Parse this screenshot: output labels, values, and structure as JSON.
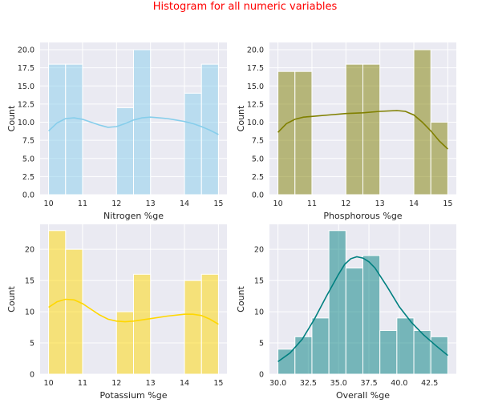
{
  "suptitle": "Histogram for all numeric variables",
  "colors": {
    "background": "#eaeaf2",
    "grid": "#ffffff",
    "suptitle": "#ff0000",
    "text": "#262626"
  },
  "chart_data": [
    {
      "type": "histogram",
      "xlabel": "Nitrogen %ge",
      "ylabel": "Count",
      "bar_color": "#87ceeb",
      "kde_color": "#87ceeb",
      "xlim": [
        9.75,
        15.25
      ],
      "ylim": [
        0,
        21
      ],
      "xticks": [
        10,
        11,
        12,
        13,
        14,
        15
      ],
      "xticklabels": [
        "10",
        "11",
        "12",
        "13",
        "14",
        "15"
      ],
      "yticks": [
        0,
        2.5,
        5,
        7.5,
        10,
        12.5,
        15,
        17.5,
        20
      ],
      "yticklabels": [
        "0.0",
        "2.5",
        "5.0",
        "7.5",
        "10.0",
        "12.5",
        "15.0",
        "17.5",
        "20.0"
      ],
      "bins": [
        {
          "x0": 10.0,
          "x1": 10.5,
          "count": 18
        },
        {
          "x0": 10.5,
          "x1": 11.0,
          "count": 18
        },
        {
          "x0": 11.0,
          "x1": 11.5,
          "count": 0
        },
        {
          "x0": 11.5,
          "x1": 12.0,
          "count": 0
        },
        {
          "x0": 12.0,
          "x1": 12.5,
          "count": 12
        },
        {
          "x0": 12.5,
          "x1": 13.0,
          "count": 20
        },
        {
          "x0": 13.0,
          "x1": 13.5,
          "count": 0
        },
        {
          "x0": 13.5,
          "x1": 14.0,
          "count": 0
        },
        {
          "x0": 14.0,
          "x1": 14.5,
          "count": 14
        },
        {
          "x0": 14.5,
          "x1": 15.0,
          "count": 18
        }
      ],
      "kde": {
        "x": [
          10,
          10.25,
          10.5,
          10.75,
          11,
          11.25,
          11.5,
          11.75,
          12,
          12.25,
          12.5,
          12.75,
          13,
          13.25,
          13.5,
          13.75,
          14,
          14.25,
          14.5,
          14.75,
          15
        ],
        "y": [
          8.8,
          9.9,
          10.5,
          10.6,
          10.4,
          10.0,
          9.6,
          9.3,
          9.4,
          9.8,
          10.3,
          10.6,
          10.7,
          10.6,
          10.5,
          10.3,
          10.1,
          9.8,
          9.4,
          8.9,
          8.3
        ]
      }
    },
    {
      "type": "histogram",
      "xlabel": "Phosphorous %ge",
      "ylabel": "Count",
      "bar_color": "#808000",
      "kde_color": "#808000",
      "xlim": [
        9.75,
        15.25
      ],
      "ylim": [
        0,
        21
      ],
      "xticks": [
        10,
        11,
        12,
        13,
        14,
        15
      ],
      "xticklabels": [
        "10",
        "11",
        "12",
        "13",
        "14",
        "15"
      ],
      "yticks": [
        0,
        2.5,
        5,
        7.5,
        10,
        12.5,
        15,
        17.5,
        20
      ],
      "yticklabels": [
        "0.0",
        "2.5",
        "5.0",
        "7.5",
        "10.0",
        "12.5",
        "15.0",
        "17.5",
        "20.0"
      ],
      "bins": [
        {
          "x0": 10.0,
          "x1": 10.5,
          "count": 17
        },
        {
          "x0": 10.5,
          "x1": 11.0,
          "count": 17
        },
        {
          "x0": 11.0,
          "x1": 11.5,
          "count": 0
        },
        {
          "x0": 11.5,
          "x1": 12.0,
          "count": 0
        },
        {
          "x0": 12.0,
          "x1": 12.5,
          "count": 18
        },
        {
          "x0": 12.5,
          "x1": 13.0,
          "count": 18
        },
        {
          "x0": 13.0,
          "x1": 13.5,
          "count": 0
        },
        {
          "x0": 13.5,
          "x1": 14.0,
          "count": 0
        },
        {
          "x0": 14.0,
          "x1": 14.5,
          "count": 20
        },
        {
          "x0": 14.5,
          "x1": 15.0,
          "count": 10
        }
      ],
      "kde": {
        "x": [
          10,
          10.25,
          10.5,
          10.75,
          11,
          11.5,
          12,
          12.5,
          13,
          13.5,
          13.75,
          14,
          14.25,
          14.5,
          14.75,
          15
        ],
        "y": [
          8.6,
          9.8,
          10.4,
          10.7,
          10.8,
          11.0,
          11.2,
          11.3,
          11.5,
          11.6,
          11.5,
          11.0,
          10.0,
          8.8,
          7.4,
          6.3
        ]
      }
    },
    {
      "type": "histogram",
      "xlabel": "Potassium %ge",
      "ylabel": "Count",
      "bar_color": "#ffd700",
      "kde_color": "#ffd700",
      "xlim": [
        9.75,
        15.25
      ],
      "ylim": [
        0,
        24
      ],
      "xticks": [
        10,
        11,
        12,
        13,
        14,
        15
      ],
      "xticklabels": [
        "10",
        "11",
        "12",
        "13",
        "14",
        "15"
      ],
      "yticks": [
        0,
        5,
        10,
        15,
        20
      ],
      "yticklabels": [
        "0",
        "5",
        "10",
        "15",
        "20"
      ],
      "bins": [
        {
          "x0": 10.0,
          "x1": 10.5,
          "count": 23
        },
        {
          "x0": 10.5,
          "x1": 11.0,
          "count": 20
        },
        {
          "x0": 11.0,
          "x1": 11.5,
          "count": 0
        },
        {
          "x0": 11.5,
          "x1": 12.0,
          "count": 0
        },
        {
          "x0": 12.0,
          "x1": 12.5,
          "count": 10
        },
        {
          "x0": 12.5,
          "x1": 13.0,
          "count": 16
        },
        {
          "x0": 13.0,
          "x1": 13.5,
          "count": 0
        },
        {
          "x0": 13.5,
          "x1": 14.0,
          "count": 0
        },
        {
          "x0": 14.0,
          "x1": 14.5,
          "count": 15
        },
        {
          "x0": 14.5,
          "x1": 15.0,
          "count": 16
        }
      ],
      "kde": {
        "x": [
          10,
          10.25,
          10.5,
          10.75,
          11,
          11.25,
          11.5,
          11.75,
          12,
          12.25,
          12.5,
          13,
          13.5,
          14,
          14.25,
          14.5,
          14.75,
          15
        ],
        "y": [
          10.7,
          11.6,
          12.0,
          11.9,
          11.3,
          10.4,
          9.5,
          8.8,
          8.5,
          8.4,
          8.5,
          8.9,
          9.3,
          9.6,
          9.6,
          9.4,
          8.8,
          8.0
        ]
      }
    },
    {
      "type": "histogram",
      "xlabel": "Overall %ge",
      "ylabel": "Count",
      "bar_color": "#008080",
      "kde_color": "#008080",
      "xlim": [
        29.3,
        44.7
      ],
      "ylim": [
        0,
        24
      ],
      "xticks": [
        30,
        32.5,
        35,
        37.5,
        40,
        42.5
      ],
      "xticklabels": [
        "30.0",
        "32.5",
        "35.0",
        "37.5",
        "40.0",
        "42.5"
      ],
      "yticks": [
        0,
        5,
        10,
        15,
        20
      ],
      "yticklabels": [
        "0",
        "5",
        "10",
        "15",
        "20"
      ],
      "bins": [
        {
          "x0": 30.0,
          "x1": 31.4,
          "count": 4
        },
        {
          "x0": 31.4,
          "x1": 32.8,
          "count": 6
        },
        {
          "x0": 32.8,
          "x1": 34.2,
          "count": 9
        },
        {
          "x0": 34.2,
          "x1": 35.6,
          "count": 23
        },
        {
          "x0": 35.6,
          "x1": 37.0,
          "count": 17
        },
        {
          "x0": 37.0,
          "x1": 38.4,
          "count": 19
        },
        {
          "x0": 38.4,
          "x1": 39.8,
          "count": 7
        },
        {
          "x0": 39.8,
          "x1": 41.2,
          "count": 9
        },
        {
          "x0": 41.2,
          "x1": 42.6,
          "count": 7
        },
        {
          "x0": 42.6,
          "x1": 44.0,
          "count": 6
        }
      ],
      "kde": {
        "x": [
          30,
          31,
          32,
          33,
          34,
          35,
          35.5,
          36,
          36.5,
          37,
          37.5,
          38,
          39,
          40,
          41,
          42,
          43,
          44
        ],
        "y": [
          2.0,
          3.4,
          5.6,
          8.8,
          12.5,
          16.0,
          17.6,
          18.5,
          18.8,
          18.6,
          18.0,
          17.0,
          14.0,
          10.8,
          8.3,
          6.3,
          4.6,
          3.0
        ]
      }
    }
  ]
}
